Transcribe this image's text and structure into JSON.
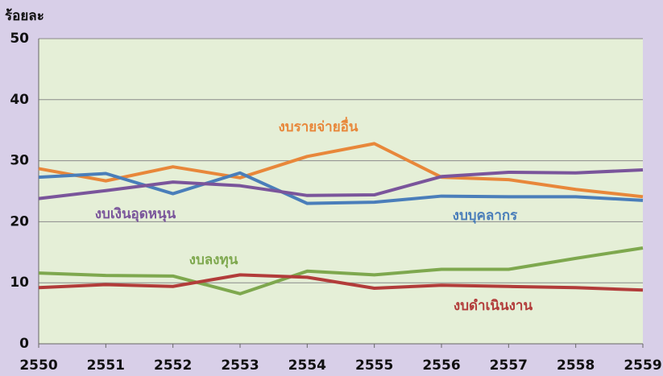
{
  "chart_data": {
    "type": "line",
    "y_label": "ร้อยละ",
    "x": [
      2550,
      2551,
      2552,
      2553,
      2554,
      2555,
      2556,
      2557,
      2558,
      2559
    ],
    "xlim": [
      2550,
      2559
    ],
    "xticks": [
      2550,
      2551,
      2552,
      2553,
      2554,
      2555,
      2556,
      2557,
      2558,
      2559
    ],
    "ylim": [
      0,
      50
    ],
    "yticks": [
      0,
      10,
      20,
      30,
      40,
      50
    ],
    "grid": true,
    "series": [
      {
        "name": "งบรายจ่ายอื่น",
        "color": "#e8873a",
        "values": [
          28.7,
          26.7,
          29.0,
          27.2,
          30.7,
          32.8,
          27.3,
          26.9,
          25.3,
          24.1
        ]
      },
      {
        "name": "งบบุคลากร",
        "color": "#4a7eba",
        "values": [
          27.3,
          27.9,
          24.6,
          28.0,
          23.0,
          23.2,
          24.2,
          24.1,
          24.1,
          23.5
        ]
      },
      {
        "name": "งบเงินอุดหนุน",
        "color": "#7a559b",
        "values": [
          23.8,
          25.1,
          26.5,
          25.9,
          24.3,
          24.4,
          27.4,
          28.1,
          28.0,
          28.5
        ]
      },
      {
        "name": "งบลงทุน",
        "color": "#7ea84e",
        "values": [
          11.6,
          11.2,
          11.1,
          8.2,
          11.9,
          11.3,
          12.2,
          12.2,
          14.0,
          15.7
        ]
      },
      {
        "name": "งบดำเนินงาน",
        "color": "#b23c3a",
        "values": [
          9.2,
          9.7,
          9.4,
          11.3,
          10.9,
          9.1,
          9.6,
          9.4,
          9.2,
          8.8
        ]
      }
    ]
  }
}
